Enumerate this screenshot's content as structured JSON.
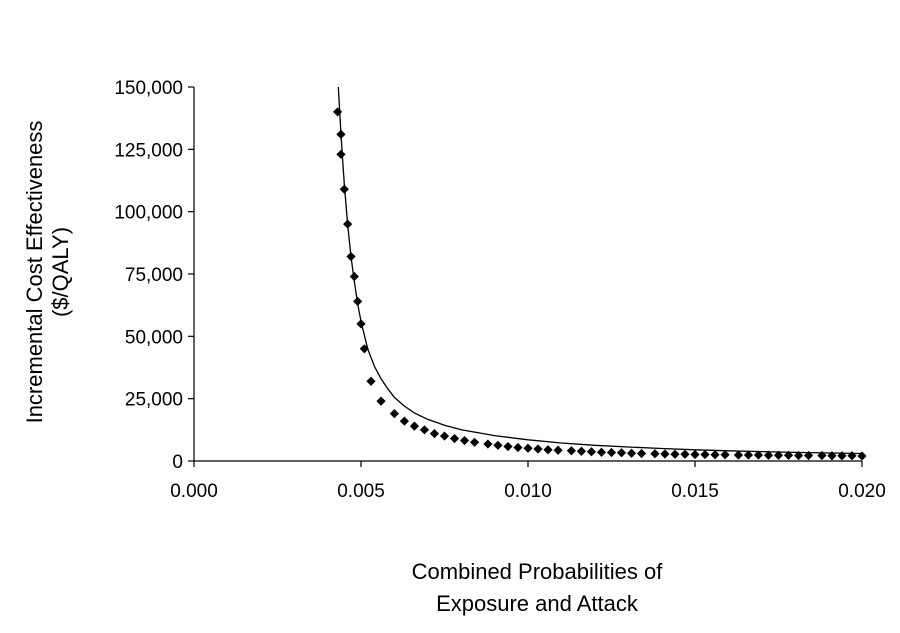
{
  "chart_data": {
    "type": "line",
    "xlabel_lines": [
      "Combined Probabilities of",
      "Exposure and Attack"
    ],
    "ylabel_lines": [
      "Incremental Cost Effectiveness",
      "($/QALY)"
    ],
    "xlim": [
      0.0,
      0.02
    ],
    "ylim": [
      0,
      150000
    ],
    "x_ticks": [
      0.0,
      0.005,
      0.01,
      0.015,
      0.02
    ],
    "x_tick_labels": [
      "0.000",
      "0.005",
      "0.010",
      "0.015",
      "0.020"
    ],
    "y_ticks": [
      0,
      25000,
      50000,
      75000,
      100000,
      125000,
      150000
    ],
    "y_tick_labels": [
      "0",
      "25,000",
      "50,000",
      "75,000",
      "100,000",
      "125,000",
      "150,000"
    ],
    "grid": false,
    "legend": "none",
    "curve_x": [
      0.00432,
      0.00436,
      0.0044,
      0.00445,
      0.0045,
      0.0046,
      0.0047,
      0.0048,
      0.0049,
      0.005,
      0.0052,
      0.0054,
      0.0056,
      0.0058,
      0.006,
      0.0063,
      0.0066,
      0.007,
      0.0075,
      0.008,
      0.009,
      0.01,
      0.011,
      0.012,
      0.013,
      0.014,
      0.015,
      0.016,
      0.017,
      0.018,
      0.019,
      0.02
    ],
    "curve_y": [
      150000,
      141000,
      131000,
      121000,
      111000,
      95000,
      82000,
      72000,
      63000,
      56000,
      45000,
      38000,
      33000,
      29000,
      25500,
      22000,
      19300,
      16700,
      14300,
      12500,
      10200,
      8500,
      7200,
      6300,
      5600,
      5000,
      4500,
      4100,
      3750,
      3450,
      3200,
      3000
    ],
    "series": [
      {
        "marker": "diamond",
        "color": "#000000",
        "x": [
          0.0043,
          0.0044,
          0.0044,
          0.0045,
          0.0046,
          0.0047,
          0.0048,
          0.0049,
          0.005,
          0.0051,
          0.0053,
          0.0056,
          0.006,
          0.0063,
          0.0066,
          0.0069,
          0.0072,
          0.0075,
          0.0078,
          0.0081,
          0.0084,
          0.0088,
          0.0091,
          0.0094,
          0.0097,
          0.01,
          0.0103,
          0.0106,
          0.0109,
          0.0113,
          0.0116,
          0.0119,
          0.0122,
          0.0125,
          0.0128,
          0.0131,
          0.0134,
          0.0138,
          0.0141,
          0.0144,
          0.0147,
          0.015,
          0.0153,
          0.0156,
          0.0159,
          0.0163,
          0.0166,
          0.0169,
          0.0172,
          0.0175,
          0.0178,
          0.0181,
          0.0184,
          0.0188,
          0.0191,
          0.0194,
          0.0197,
          0.02
        ],
        "y": [
          140000,
          131000,
          123000,
          109000,
          95000,
          82000,
          74000,
          64000,
          55000,
          45000,
          32000,
          24000,
          19000,
          16000,
          14000,
          12500,
          11000,
          10000,
          9000,
          8200,
          7500,
          6800,
          6300,
          5800,
          5400,
          5100,
          4800,
          4500,
          4300,
          4100,
          3900,
          3700,
          3500,
          3400,
          3300,
          3100,
          3000,
          2900,
          2800,
          2700,
          2700,
          2600,
          2600,
          2500,
          2500,
          2400,
          2400,
          2400,
          2300,
          2300,
          2300,
          2200,
          2200,
          2200,
          2100,
          2100,
          2100,
          2000
        ]
      }
    ]
  }
}
